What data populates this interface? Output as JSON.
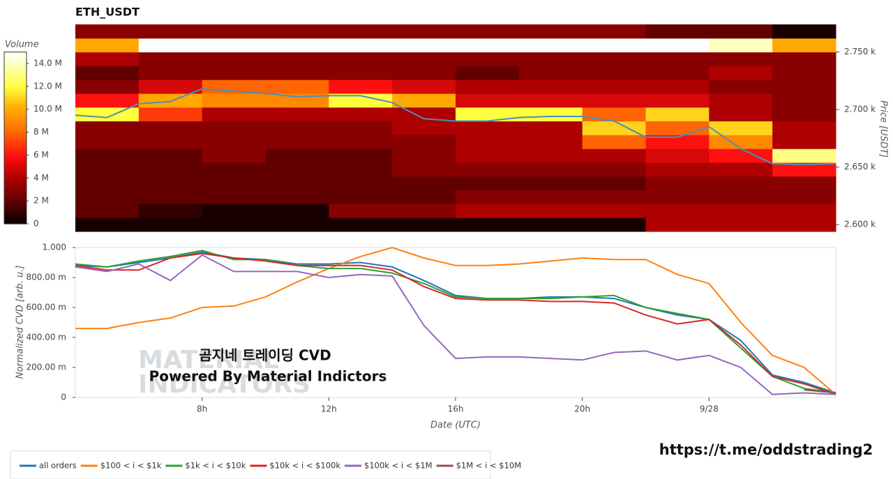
{
  "chart_data": [
    {
      "type": "heatmap",
      "title": "ETH_USDT",
      "y_label": "Price [USDT]",
      "colorbar_label": "Volume",
      "xlim": [
        4,
        28
      ],
      "ylim": [
        2594,
        2774
      ],
      "yticks": [
        {
          "value": 2600,
          "label": "2.600 k"
        },
        {
          "value": 2650,
          "label": "2.650 k"
        },
        {
          "value": 2700,
          "label": "2.700 k"
        },
        {
          "value": 2750,
          "label": "2.750 k"
        }
      ],
      "x_bins": [
        4,
        6,
        8,
        10,
        12,
        14,
        16,
        18,
        20,
        22,
        24,
        26,
        28
      ],
      "y_bins": [
        2594,
        2606,
        2618,
        2630,
        2642,
        2654,
        2666,
        2678,
        2690,
        2702,
        2714,
        2726,
        2738,
        2750,
        2762,
        2774
      ],
      "z": [
        [
          500000,
          500000,
          500000,
          500000,
          500000,
          500000,
          500000,
          500000,
          500000,
          4000000,
          4000000,
          4000000
        ],
        [
          2000000,
          1000000,
          500000,
          500000,
          3000000,
          3000000,
          4000000,
          4000000,
          4000000,
          4000000,
          4000000,
          4000000
        ],
        [
          2000000,
          2000000,
          2000000,
          2000000,
          2000000,
          2000000,
          3000000,
          3000000,
          3000000,
          3000000,
          3000000,
          3000000
        ],
        [
          2000000,
          2000000,
          2000000,
          2000000,
          2000000,
          2000000,
          2000000,
          2000000,
          2000000,
          3000000,
          3000000,
          3000000
        ],
        [
          2000000,
          2000000,
          2000000,
          2000000,
          2000000,
          3000000,
          3000000,
          3000000,
          3000000,
          4000000,
          4000000,
          6000000
        ],
        [
          2000000,
          2000000,
          3000000,
          2000000,
          2000000,
          3000000,
          4000000,
          4000000,
          4000000,
          5000000,
          6000000,
          13000000
        ],
        [
          3000000,
          3000000,
          3000000,
          3000000,
          3000000,
          3000000,
          4000000,
          4000000,
          8000000,
          6000000,
          9000000,
          4000000
        ],
        [
          3000000,
          3000000,
          3000000,
          3000000,
          3000000,
          4000000,
          4000000,
          4000000,
          11000000,
          8000000,
          11000000,
          4000000
        ],
        [
          12000000,
          7000000,
          4000000,
          4000000,
          4000000,
          4000000,
          12000000,
          12000000,
          8000000,
          11000000,
          4000000,
          3000000
        ],
        [
          6000000,
          10000000,
          9000000,
          9000000,
          12000000,
          10000000,
          5000000,
          5000000,
          5000000,
          5000000,
          4000000,
          3000000
        ],
        [
          3000000,
          5000000,
          8000000,
          8000000,
          6000000,
          5000000,
          4000000,
          4000000,
          4000000,
          4000000,
          3000000,
          3000000
        ],
        [
          2000000,
          3000000,
          3000000,
          3000000,
          3000000,
          3000000,
          2000000,
          3000000,
          3000000,
          3000000,
          4000000,
          3000000
        ],
        [
          4000000,
          3000000,
          3000000,
          3000000,
          3000000,
          3000000,
          3000000,
          3000000,
          3000000,
          3000000,
          3000000,
          3000000
        ],
        [
          10000000,
          15000000,
          15000000,
          15000000,
          15000000,
          15000000,
          15000000,
          15000000,
          15000000,
          15000000,
          14000000,
          10000000
        ],
        [
          3000000,
          3000000,
          3000000,
          3000000,
          3000000,
          3000000,
          3000000,
          3000000,
          3000000,
          2000000,
          2000000,
          500000
        ]
      ],
      "clim": [
        0,
        15000000
      ],
      "cticks": [
        0,
        {
          "value": 2000000,
          "label": "2 M"
        },
        {
          "value": 4000000,
          "label": "4 M"
        },
        {
          "value": 6000000,
          "label": "6 M"
        },
        {
          "value": 8000000,
          "label": "8 M"
        },
        {
          "value": 10000000,
          "label": "10.0 M"
        },
        {
          "value": 12000000,
          "label": "12.0 M"
        },
        {
          "value": 14000000,
          "label": "14.0 M"
        }
      ],
      "colorscale": [
        [
          0,
          "#000000"
        ],
        [
          0.13,
          "#600000"
        ],
        [
          0.27,
          "#b00000"
        ],
        [
          0.4,
          "#ff1010"
        ],
        [
          0.55,
          "#ff7000"
        ],
        [
          0.68,
          "#ffb000"
        ],
        [
          0.8,
          "#ffff40"
        ],
        [
          1,
          "#ffffff"
        ]
      ],
      "x": [
        4,
        5,
        6,
        7,
        8,
        9,
        10,
        11,
        12,
        13,
        14,
        15,
        16,
        17,
        18,
        19,
        20,
        21,
        22,
        23,
        24,
        25,
        26,
        27,
        28
      ],
      "series": [
        {
          "color": "#4a8fc0",
          "values": [
            2695,
            2693,
            2705,
            2707,
            2718,
            2716,
            2714,
            2711,
            2712,
            2712,
            2706,
            2692,
            2690,
            2690,
            2693,
            2694,
            2694,
            2690,
            2676,
            2676,
            2685,
            2666,
            2653,
            2652,
            2653
          ]
        }
      ]
    },
    {
      "type": "line",
      "x_label": "Date (UTC)",
      "y_label": "Normalized CVD [arb. u.]",
      "xlim": [
        4,
        28
      ],
      "ylim": [
        0,
        1
      ],
      "xticks": [
        {
          "value": 8,
          "label": "8h"
        },
        {
          "value": 12,
          "label": "12h"
        },
        {
          "value": 16,
          "label": "16h"
        },
        {
          "value": 20,
          "label": "20h"
        },
        {
          "value": 24,
          "label": "9/28"
        }
      ],
      "yticks": [
        0,
        {
          "value": 0.2,
          "label": "200.00 m"
        },
        {
          "value": 0.4,
          "label": "400.00 m"
        },
        {
          "value": 0.6,
          "label": "600.00 m"
        },
        {
          "value": 0.8,
          "label": "800.00 m"
        },
        {
          "value": 1,
          "label": "1.000"
        }
      ],
      "legend": "bottom",
      "x": [
        4,
        5,
        6,
        7,
        8,
        9,
        10,
        11,
        12,
        13,
        14,
        15,
        16,
        17,
        18,
        19,
        20,
        21,
        22,
        23,
        24,
        25,
        26,
        27,
        28
      ],
      "series": [
        {
          "name": "all orders",
          "color": "#1f77b4",
          "values": [
            0.88,
            0.87,
            0.9,
            0.93,
            0.97,
            0.93,
            0.92,
            0.89,
            0.89,
            0.9,
            0.87,
            0.78,
            0.68,
            0.66,
            0.66,
            0.67,
            0.67,
            0.66,
            0.6,
            0.55,
            0.52,
            0.38,
            0.15,
            0.1,
            0.03
          ]
        },
        {
          "name": "$100 < i < $1k",
          "color": "#ff7f0e",
          "values": [
            0.46,
            0.46,
            0.5,
            0.53,
            0.6,
            0.61,
            0.67,
            0.77,
            0.86,
            0.94,
            1.0,
            0.93,
            0.88,
            0.88,
            0.89,
            0.91,
            0.93,
            0.92,
            0.92,
            0.82,
            0.76,
            0.5,
            0.28,
            0.2,
            0.02
          ]
        },
        {
          "name": "$1k < i < $10k",
          "color": "#2ca02c",
          "values": [
            0.89,
            0.87,
            0.91,
            0.94,
            0.98,
            0.92,
            0.92,
            0.88,
            0.86,
            0.86,
            0.83,
            0.76,
            0.67,
            0.66,
            0.66,
            0.66,
            0.67,
            0.68,
            0.6,
            0.56,
            0.52,
            0.33,
            0.14,
            0.06,
            0.03
          ]
        },
        {
          "name": "$10k < i < $100k",
          "color": "#d62728",
          "values": [
            0.88,
            0.85,
            0.85,
            0.93,
            0.96,
            0.93,
            0.91,
            0.88,
            0.88,
            0.88,
            0.85,
            0.74,
            0.66,
            0.65,
            0.65,
            0.64,
            0.64,
            0.63,
            0.55,
            0.49,
            0.52,
            0.35,
            0.14,
            0.09,
            0.02
          ]
        },
        {
          "name": "$100k < i < $1M",
          "color": "#9467bd",
          "values": [
            0.87,
            0.84,
            0.89,
            0.78,
            0.95,
            0.84,
            0.84,
            0.84,
            0.8,
            0.82,
            0.81,
            0.48,
            0.26,
            0.27,
            0.27,
            0.26,
            0.25,
            0.3,
            0.31,
            0.25,
            0.28,
            0.2,
            0.02,
            0.03,
            0.02
          ]
        },
        {
          "name": "$1M < i < $10M",
          "color": "#8c564b",
          "values": [
            null,
            null,
            null,
            null,
            null,
            null,
            null,
            null,
            null,
            null,
            null,
            null,
            null,
            null,
            null,
            null,
            null,
            null,
            null,
            null,
            null,
            null,
            null,
            0.05,
            0.03
          ]
        }
      ]
    }
  ],
  "watermark": [
    "MATERIAL",
    "INDICATORS"
  ],
  "annotations": [
    "곰지네 트레이딩 CVD",
    "Powered By Material Indictors"
  ],
  "footer_link": "https://t.me/oddstrading2"
}
